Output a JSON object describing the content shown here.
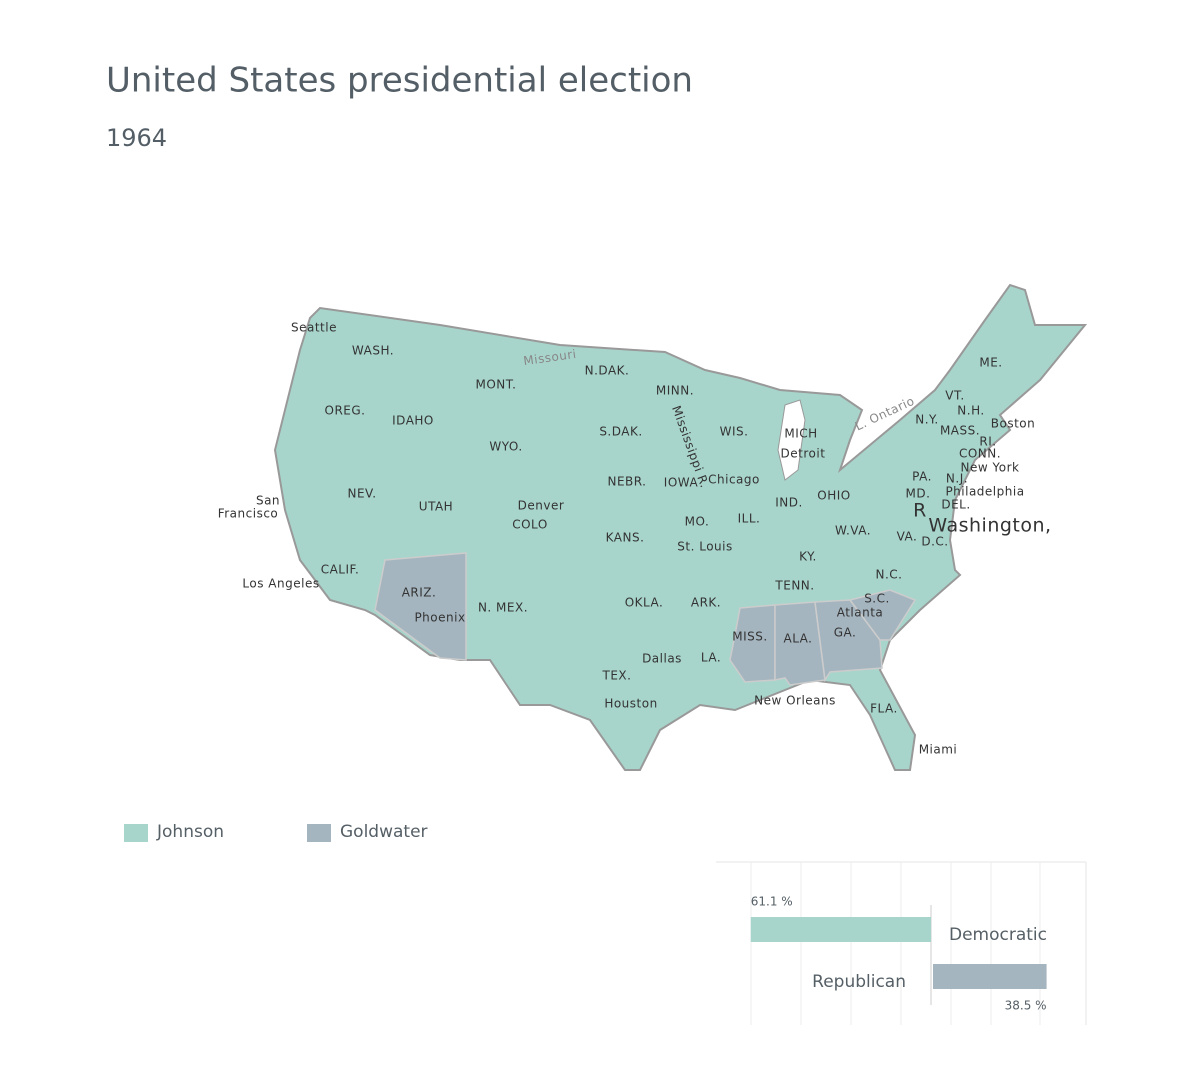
{
  "header": {
    "title": "United States presidential election",
    "subtitle": "1964"
  },
  "map": {
    "labels": [
      "Seattle",
      "WASH.",
      "MONT.",
      "N.DAK.",
      "MINN.",
      "Missouri",
      "OREG.",
      "IDAHO",
      "WYO.",
      "S.DAK.",
      "WIS.",
      "MICH",
      "Detroit",
      "ME.",
      "VT.",
      "N.H.",
      "Boston",
      "N.Y.",
      "MASS.",
      "RI.",
      "CONN.",
      "New York",
      "L. Ontario",
      "Mississippi R.",
      "NEV.",
      "UTAH",
      "Denver",
      "COLO",
      "NEBR.",
      "IOWA",
      "Chicago",
      "IND.",
      "OHIO",
      "PA.",
      "N.J.",
      "Philadelphia",
      "MD.",
      "DEL.",
      "San",
      "Francisco",
      "KANS.",
      "MO.",
      "ILL.",
      "W.VA.",
      "Washington,",
      "R",
      "VA.",
      "D.C.",
      "St. Louis",
      "KY.",
      "CALIF.",
      "Los Angeles",
      "ARIZ.",
      "Phoenix",
      "N. MEX.",
      "OKLA.",
      "ARK.",
      "TENN.",
      "N.C.",
      "S.C.",
      "Atlanta",
      "GA.",
      "MISS.",
      "ALA.",
      "Dallas",
      "LA.",
      "TEX.",
      "Houston",
      "New Orleans",
      "FLA.",
      "Miami"
    ]
  },
  "legend": [
    {
      "name": "Johnson",
      "color": "#a8d5cb"
    },
    {
      "name": "Goldwater",
      "color": "#a5b5bf"
    }
  ],
  "chart_data": {
    "type": "bar",
    "orientation": "horizontal",
    "categories": [
      "Democratic",
      "Republican"
    ],
    "values": [
      61.1,
      38.5
    ],
    "value_labels": [
      "61.1 %",
      "38.5 %"
    ],
    "colors": [
      "#a8d5cb",
      "#a5b5bf"
    ]
  }
}
